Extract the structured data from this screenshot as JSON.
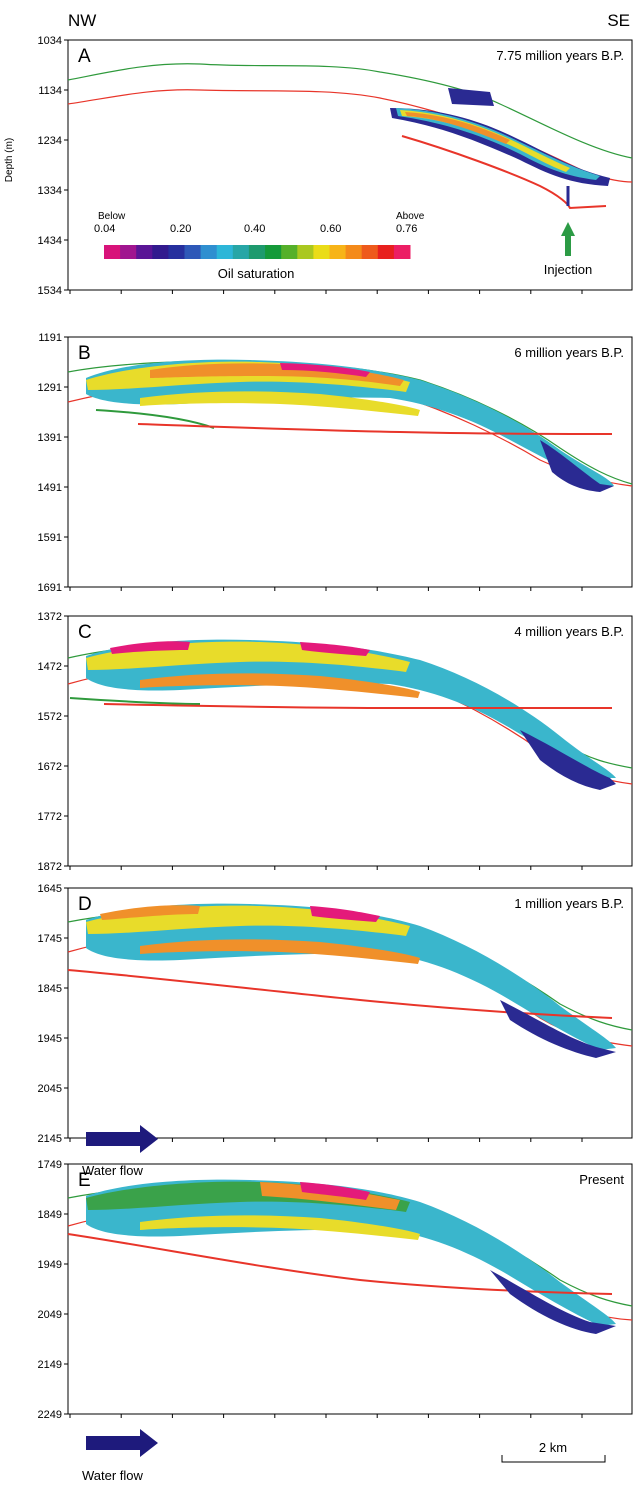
{
  "header": {
    "left": "NW",
    "right": "SE"
  },
  "y_axis_label": "Depth (m)",
  "panels": [
    {
      "letter": "A",
      "title": "7.75 million years B.P.",
      "ticks": [
        "1034",
        "1134",
        "1234",
        "1334",
        "1434",
        "1534"
      ]
    },
    {
      "letter": "B",
      "title": "6 million years B.P.",
      "ticks": [
        "1191",
        "1291",
        "1391",
        "1491",
        "1591",
        "1691"
      ]
    },
    {
      "letter": "C",
      "title": "4 million years B.P.",
      "ticks": [
        "1372",
        "1472",
        "1572",
        "1672",
        "1772",
        "1872"
      ]
    },
    {
      "letter": "D",
      "title": "1 million years B.P.",
      "ticks": [
        "1645",
        "1745",
        "1845",
        "1945",
        "2045",
        "2145"
      ]
    },
    {
      "letter": "E",
      "title": "Present",
      "ticks": [
        "1749",
        "1849",
        "1949",
        "2049",
        "2149",
        "2249"
      ]
    }
  ],
  "legend": {
    "below_label": "Below",
    "above_label": "Above",
    "tick_labels": [
      "0.04",
      "0.20",
      "0.40",
      "0.60",
      "0.76"
    ],
    "title": "Oil saturation",
    "colors": [
      "#d8137a",
      "#a0158f",
      "#5a1596",
      "#321a8e",
      "#262f9e",
      "#2e58b8",
      "#2f8fd0",
      "#2db6d8",
      "#27a6a6",
      "#1e9a6e",
      "#159a3a",
      "#55b02a",
      "#aac820",
      "#eadc18",
      "#f7b418",
      "#f48a1a",
      "#ee5a1c",
      "#e8201e",
      "#ec1e64"
    ]
  },
  "annotations": {
    "injection": "Injection",
    "water_flow_d": "Water flow",
    "water_flow_e": "Water flow",
    "scale_bar": "2 km"
  },
  "colors": {
    "green_line": "#2f9a3c",
    "red_line": "#e8352a",
    "arrow_green": "#2c9b45",
    "arrow_navy": "#1e1a7c",
    "teal": "#3ab6cc",
    "navy": "#2a2a92",
    "yellow": "#e8dc2a",
    "orange": "#f0902a",
    "magenta": "#e41a7a",
    "green_fill": "#3aa24a"
  }
}
